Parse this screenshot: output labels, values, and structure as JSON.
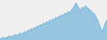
{
  "chart_data": {
    "type": "area",
    "values": [
      5,
      5,
      6,
      5,
      6,
      6,
      7,
      6,
      7,
      7,
      8,
      7,
      8,
      9,
      8,
      9,
      10,
      9,
      11,
      10,
      12,
      11,
      13,
      12,
      14,
      13,
      15,
      14,
      16,
      15,
      17,
      16,
      18,
      17,
      19,
      18,
      20,
      19,
      21,
      20,
      22,
      21,
      23,
      22,
      24,
      23,
      25,
      26,
      28,
      30,
      28,
      26,
      25,
      27,
      26,
      28,
      27,
      26,
      25,
      24,
      23,
      22,
      20,
      18,
      15,
      12,
      10,
      13,
      16,
      18
    ],
    "color": "#5ba8d4",
    "ylim": [
      4,
      32
    ],
    "tick_labels": false
  }
}
